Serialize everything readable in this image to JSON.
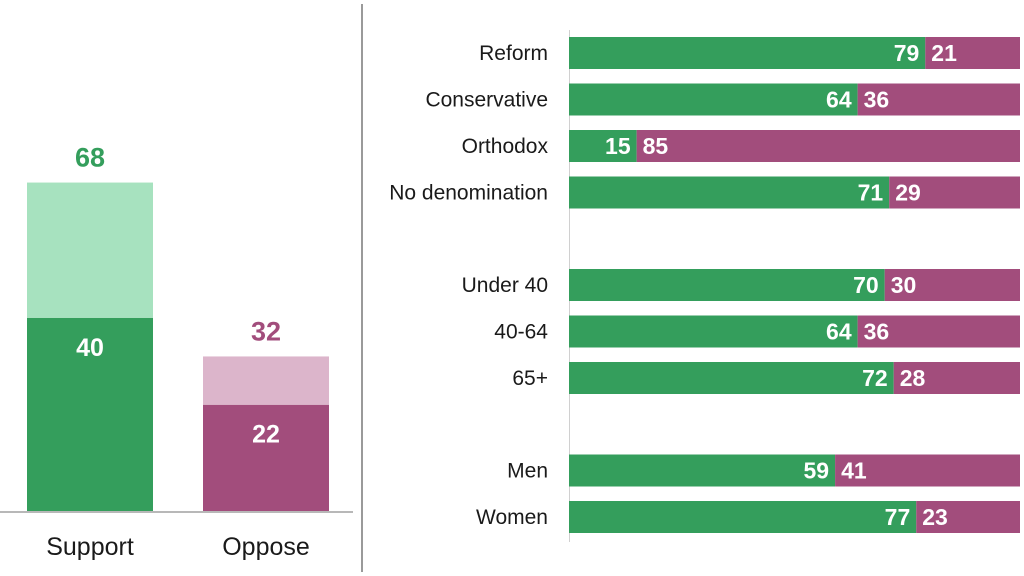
{
  "colors": {
    "support_dark": "#349e5c",
    "support_light": "#a7e2bf",
    "oppose_dark": "#a24d7c",
    "oppose_light": "#dcb5cb",
    "support_total_text": "#349e5c",
    "oppose_total_text": "#a24d7c"
  },
  "chart_data": [
    {
      "type": "bar",
      "stacked": true,
      "categories": [
        "Support",
        "Oppose"
      ],
      "series": [
        {
          "values": [
            40,
            22
          ]
        },
        {
          "values": [
            28,
            10
          ]
        }
      ],
      "totals": [
        68,
        32
      ],
      "ylim": [
        0,
        100
      ],
      "grid": false
    },
    {
      "type": "bar",
      "orientation": "horizontal",
      "stacked": true,
      "percent": true,
      "groups": [
        [
          "Reform",
          "Conservative",
          "Orthodox",
          "No denomination"
        ],
        [
          "Under 40",
          "40-64",
          "65+"
        ],
        [
          "Men",
          "Women"
        ]
      ],
      "categories": [
        "Reform",
        "Conservative",
        "Orthodox",
        "No denomination",
        "Under 40",
        "40-64",
        "65+",
        "Men",
        "Women"
      ],
      "series": [
        {
          "values": [
            79,
            64,
            15,
            71,
            70,
            64,
            72,
            59,
            77
          ]
        },
        {
          "values": [
            21,
            36,
            85,
            29,
            30,
            36,
            28,
            41,
            23
          ]
        }
      ],
      "xlim": [
        0,
        100
      ],
      "grid": false
    }
  ]
}
